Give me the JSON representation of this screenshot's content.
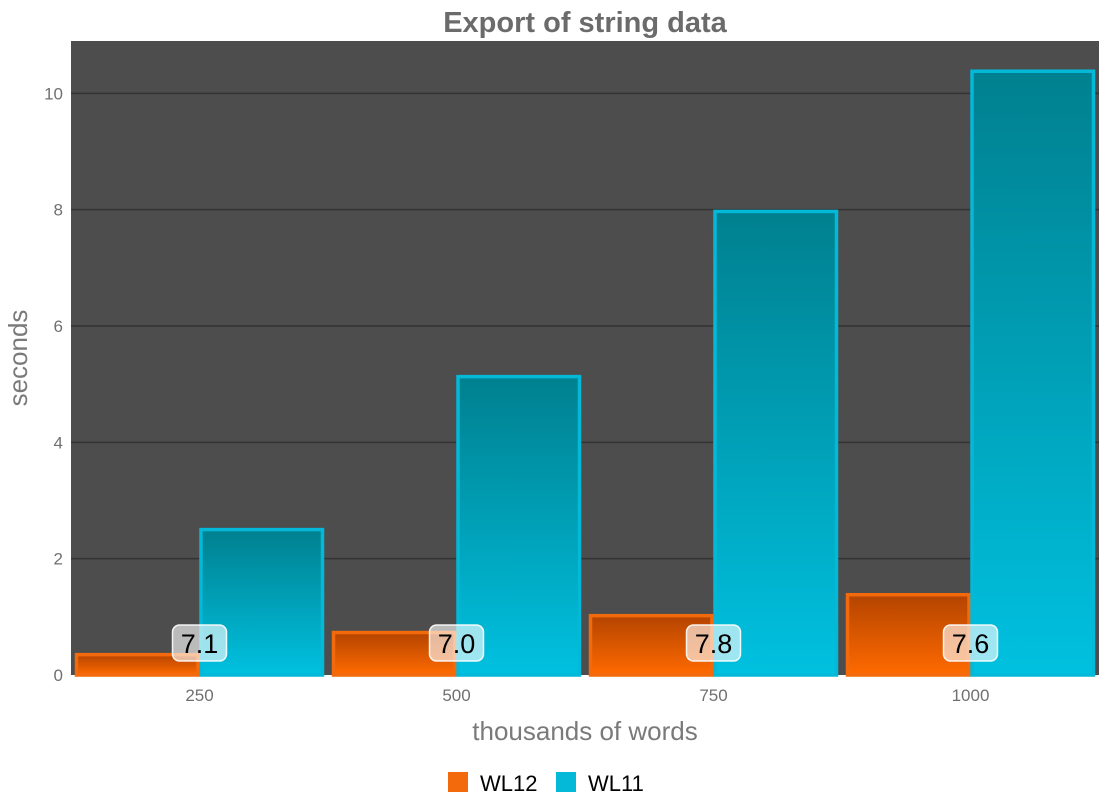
{
  "chart_data": {
    "type": "bar",
    "title": "Export of string data",
    "xlabel": "thousands of words",
    "ylabel": "seconds",
    "categories": [
      "250",
      "500",
      "750",
      "1000"
    ],
    "series": [
      {
        "name": "WL12",
        "values": [
          0.35,
          0.73,
          1.02,
          1.38
        ],
        "color": "#f26a0c"
      },
      {
        "name": "WL11",
        "values": [
          2.5,
          5.13,
          7.97,
          10.38
        ],
        "color": "#04b8d8"
      }
    ],
    "data_labels": [
      "7.1",
      "7.0",
      "7.8",
      "7.6"
    ],
    "ylim": [
      0,
      10.9
    ],
    "yticks": [
      "0",
      "2",
      "4",
      "6",
      "8",
      "10"
    ],
    "grid": true,
    "legend_position": "bottom",
    "colors": {
      "plot_background": "#4d4d4d",
      "gridline": "#333333"
    }
  }
}
